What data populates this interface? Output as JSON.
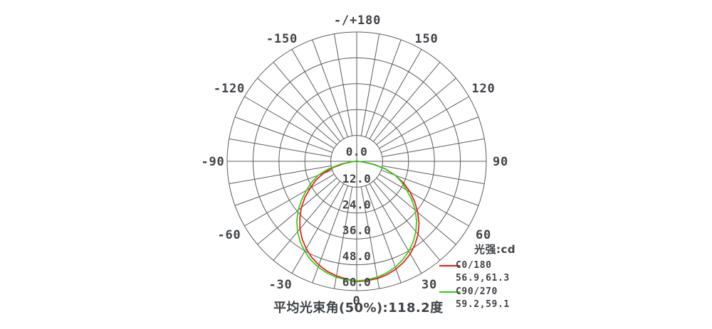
{
  "page": {
    "background": "#ffffff"
  },
  "legend": {
    "title": "光强:cd",
    "series": [
      {
        "label": "C0/180",
        "values": "56.9,61.3",
        "color": "#ee1414"
      },
      {
        "label": "C90/270",
        "values": "59.2,59.1",
        "color": "#2bd011"
      }
    ]
  },
  "footer": {
    "text": "平均光束角(50%):118.2度"
  },
  "chart_data": {
    "type": "line",
    "subtype": "polar-intensity-distribution",
    "units": "cd",
    "title": "",
    "legend_title": "光强:cd",
    "beam_angle_note": "平均光束角(50%):118.2度",
    "average_beam_angle_50pct_deg": 118.2,
    "grid": true,
    "angle_tick_step_deg": 10,
    "angle_label_step_deg": 30,
    "radial_ticks": [
      0,
      12,
      24,
      36,
      48,
      60
    ],
    "radial_tick_labels": [
      "0.0",
      "12.0",
      "24.0",
      "36.0",
      "48.0",
      "60.0"
    ],
    "rmax": 60,
    "angle_labels": [
      {
        "deg": 180,
        "text": "-/+180"
      },
      {
        "deg": -150,
        "text": "-150"
      },
      {
        "deg": -120,
        "text": "-120"
      },
      {
        "deg": -90,
        "text": "-90"
      },
      {
        "deg": -60,
        "text": "-60"
      },
      {
        "deg": -30,
        "text": "-30"
      },
      {
        "deg": 0,
        "text": "0"
      },
      {
        "deg": 30,
        "text": "30"
      },
      {
        "deg": 60,
        "text": "60"
      },
      {
        "deg": 90,
        "text": "90"
      },
      {
        "deg": 120,
        "text": "120"
      },
      {
        "deg": 150,
        "text": "150"
      }
    ],
    "series": [
      {
        "name": "C0/180",
        "color": "#ee1414",
        "beam_angles_50pct_deg": [
          56.9,
          61.3
        ],
        "angles_deg": [
          -90,
          -85,
          -80,
          -75,
          -70,
          -65,
          -60,
          -55,
          -50,
          -45,
          -40,
          -35,
          -30,
          -25,
          -20,
          -15,
          -10,
          -5,
          0,
          5,
          10,
          15,
          20,
          25,
          30,
          35,
          40,
          45,
          50,
          55,
          60,
          65,
          70,
          75,
          80,
          85,
          90
        ],
        "intensities_cd": [
          0.2,
          2,
          6,
          11.5,
          16.5,
          21,
          24.8,
          29.3,
          33.5,
          37.2,
          40.9,
          44,
          46.8,
          49.2,
          51.2,
          52.8,
          54,
          54.8,
          55.8,
          55.6,
          55.2,
          54.4,
          53.2,
          51.6,
          49.6,
          47.1,
          44.2,
          40.8,
          36.9,
          32.8,
          28.6,
          24,
          19,
          13.8,
          7.8,
          2.2,
          0.2
        ]
      },
      {
        "name": "C90/270",
        "color": "#2bd011",
        "beam_angles_50pct_deg": [
          59.2,
          59.1
        ],
        "angles_deg": [
          -90,
          -85,
          -80,
          -75,
          -70,
          -65,
          -60,
          -55,
          -50,
          -45,
          -40,
          -35,
          -30,
          -25,
          -20,
          -15,
          -10,
          -5,
          0,
          5,
          10,
          15,
          20,
          25,
          30,
          35,
          40,
          45,
          50,
          55,
          60,
          65,
          70,
          75,
          80,
          85,
          90
        ],
        "intensities_cd": [
          0.2,
          2.5,
          7.5,
          13.5,
          19,
          23,
          26.8,
          31.2,
          35.4,
          39.2,
          42.6,
          45.6,
          48.2,
          50.4,
          52.2,
          53.6,
          54.6,
          55.2,
          55.5,
          55.2,
          54.6,
          53.6,
          52.2,
          50.4,
          48.2,
          45.6,
          42.6,
          39.2,
          35.4,
          31.2,
          26.7,
          23,
          19,
          13.5,
          7.5,
          2.5,
          0.2
        ]
      }
    ]
  }
}
